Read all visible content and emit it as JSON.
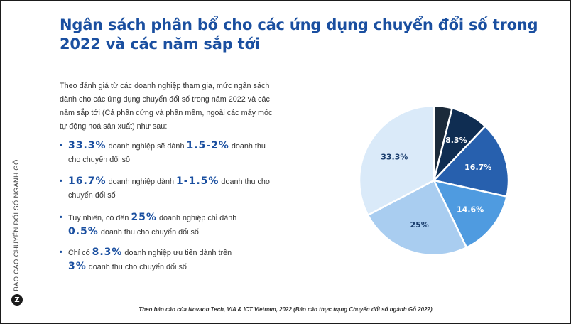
{
  "sidebar": {
    "text": "BÁO CÁO CHUYỂN ĐỔI SỐ NGÀNH GỖ",
    "logo": "Z"
  },
  "title": "Ngân sách phân bổ cho các ứng dụng chuyển đổi số trong 2022 và các năm sắp tới",
  "intro": "Theo đánh giá từ các doanh nghiệp tham gia, mức ngân sách dành cho các ứng dụng chuyển đổi số trong năm 2022 và các năm sắp tới (Cả phần cứng và phần mềm, ngoài các máy móc tự động hoá sản xuất) như sau:",
  "bullets": [
    {
      "dot": "•",
      "hl1": "33.3%",
      "t1": " doanh nghiệp sẽ dành ",
      "hl2": "1.5-2%",
      "t2": " doanh thu cho chuyển đổi số"
    },
    {
      "dot": "•",
      "hl1": "16.7%",
      "t1": " doanh nghiệp dành ",
      "hl2": "1-1.5%",
      "t2": " doanh thu cho chuyển đổi số"
    },
    {
      "dot": "•",
      "t0": "Tuy nhiên, có đến ",
      "hl1": "25%",
      "t1": " doanh nghiệp chỉ dành ",
      "hl2": "0.5%",
      "t2": " doanh thu cho chuyển đổi số"
    },
    {
      "dot": "•",
      "t0": "Chỉ có ",
      "hl1": "8.3%",
      "t1": " doanh nghiệp ưu tiên dành trên ",
      "hl2": "3%",
      "t2": " doanh thu cho chuyển đổi số"
    }
  ],
  "chart_data": {
    "type": "pie",
    "title": "",
    "slices": [
      {
        "label": "",
        "value": 4.0,
        "color": "#1b2a3a"
      },
      {
        "label": "8.3%",
        "value": 8.3,
        "color": "#0f2d52"
      },
      {
        "label": "16.7%",
        "value": 16.7,
        "color": "#2760ae"
      },
      {
        "label": "14.6%",
        "value": 14.6,
        "color": "#4f9be0"
      },
      {
        "label": "25%",
        "value": 25,
        "color": "#a9cdf0"
      },
      {
        "label": "33.3%",
        "value": 33.3,
        "color": "#daeaf9"
      }
    ],
    "label_colors": [
      "#ffffff",
      "#ffffff",
      "#ffffff",
      "#ffffff",
      "#1a3e6e",
      "#1a3e6e"
    ]
  },
  "footer": "Theo báo cáo của Novaon Tech, VIA & ICT Vietnam, 2022 (Báo cáo thực trạng Chuyển đổi số ngành Gỗ 2022)"
}
